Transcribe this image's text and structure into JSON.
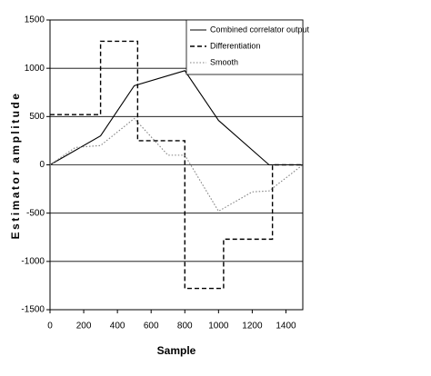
{
  "chart_data": {
    "type": "line",
    "xlabel": "Sample",
    "ylabel": "Estimator amplitude",
    "xlim": [
      0,
      1500
    ],
    "xticks": [
      0,
      200,
      400,
      600,
      800,
      1000,
      1200,
      1400
    ],
    "ylim": [
      -1500,
      1500
    ],
    "yticks": [
      -1500,
      -1000,
      -500,
      0,
      500,
      1000,
      1500
    ],
    "grid": true,
    "legend": "upper right",
    "series": [
      {
        "name": "Combined correlator output",
        "color": "#000000",
        "style": "solid",
        "x": [
          0,
          300,
          500,
          800,
          1000,
          1300,
          1500
        ],
        "values": [
          0,
          300,
          820,
          975,
          460,
          0,
          0
        ]
      },
      {
        "name": "Differentiation",
        "color": "#000000",
        "style": "dashed",
        "x": [
          0,
          300,
          300,
          520,
          520,
          800,
          800,
          1030,
          1030,
          1320,
          1320,
          1500
        ],
        "values": [
          520,
          520,
          1280,
          1280,
          250,
          250,
          -1280,
          -1280,
          -770,
          -770,
          0,
          0
        ]
      },
      {
        "name": "Smooth",
        "color": "#808080",
        "style": "dotted",
        "x": [
          0,
          150,
          300,
          500,
          700,
          800,
          1000,
          1200,
          1300,
          1500
        ],
        "values": [
          0,
          180,
          200,
          480,
          100,
          100,
          -480,
          -280,
          -270,
          0
        ]
      }
    ]
  }
}
